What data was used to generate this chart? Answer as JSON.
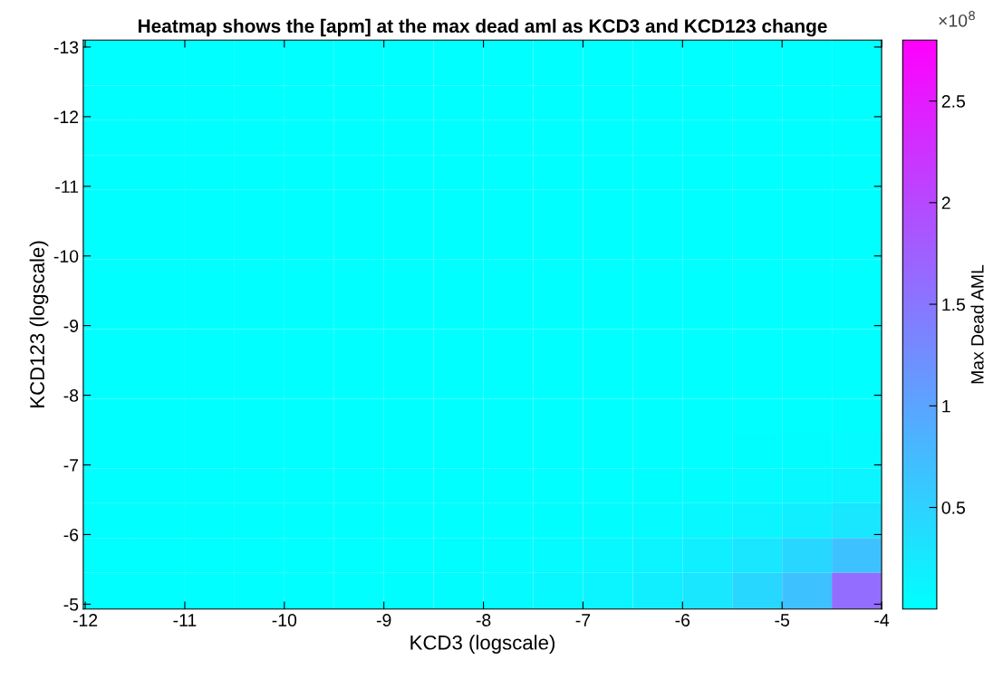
{
  "chart_data": {
    "type": "heatmap",
    "title": "Heatmap shows the [apm] at the max dead aml as KCD3 and KCD123 change",
    "xlabel": "KCD3 (logscale)",
    "ylabel": "KCD123 (logscale)",
    "clabel": "Max Dead AML",
    "annotations": [
      "×10$^{8}$"
    ],
    "x": [
      -11.75,
      -11.25,
      -10.75,
      -10.25,
      -9.75,
      -9.25,
      -8.75,
      -8.25,
      -7.75,
      -7.25,
      -6.75,
      -6.25,
      -5.75,
      -5.25,
      -4.75,
      -4.25
    ],
    "y": [
      -12.7,
      -12.2,
      -11.7,
      -11.2,
      -10.7,
      -10.2,
      -9.7,
      -9.2,
      -8.7,
      -8.2,
      -7.7,
      -7.2,
      -6.7,
      -6.2,
      -5.7,
      -5.2
    ],
    "cells": [
      [
        0,
        0,
        0,
        0,
        0,
        0,
        0,
        0,
        0,
        0,
        0,
        0,
        0,
        0,
        0,
        0
      ],
      [
        0,
        0,
        0,
        0,
        0,
        0,
        0,
        0,
        0,
        0,
        0,
        0,
        0,
        0,
        0,
        0
      ],
      [
        0,
        0,
        0,
        0,
        0,
        0,
        0,
        0,
        0,
        0,
        0,
        0,
        0,
        0,
        0,
        0
      ],
      [
        0,
        0,
        0,
        0,
        0,
        0,
        0,
        0,
        0,
        0,
        0,
        0,
        0,
        0,
        0,
        0
      ],
      [
        0,
        0,
        0,
        0,
        0,
        0,
        0,
        0,
        0,
        0,
        0,
        0,
        0,
        0,
        0,
        0
      ],
      [
        0,
        0,
        0,
        0,
        0,
        0,
        0,
        0,
        0,
        0,
        0,
        0,
        0,
        0,
        0,
        0
      ],
      [
        0,
        0,
        0,
        0,
        0,
        0,
        0,
        0,
        0,
        0,
        0,
        0,
        0,
        0,
        0,
        0
      ],
      [
        0,
        0,
        0,
        0,
        0,
        0,
        0,
        0,
        0,
        0,
        0,
        0,
        0,
        0,
        0,
        0
      ],
      [
        0,
        0,
        0,
        0,
        0,
        0,
        0,
        0,
        0,
        0,
        0,
        0,
        0,
        0,
        0,
        0
      ],
      [
        0,
        0,
        0,
        0,
        0,
        0,
        0,
        0,
        0,
        0,
        0,
        0,
        0,
        0,
        0,
        0
      ],
      [
        0,
        0,
        0,
        0,
        0,
        0,
        0,
        0,
        0,
        0,
        0,
        0,
        0,
        0,
        0.01,
        0.02
      ],
      [
        0,
        0,
        0,
        0,
        0,
        0,
        0,
        0,
        0,
        0,
        0,
        0,
        0.01,
        0.02,
        0.03,
        0.05
      ],
      [
        0,
        0,
        0,
        0,
        0,
        0,
        0,
        0,
        0,
        0,
        0.01,
        0.02,
        0.03,
        0.05,
        0.08,
        0.12
      ],
      [
        0,
        0,
        0,
        0,
        0,
        0,
        0,
        0,
        0.01,
        0.02,
        0.03,
        0.05,
        0.08,
        0.12,
        0.18,
        0.28
      ],
      [
        0,
        0,
        0,
        0,
        0,
        0,
        0.01,
        0.02,
        0.03,
        0.05,
        0.08,
        0.12,
        0.18,
        0.28,
        0.44,
        0.67
      ],
      [
        0,
        0,
        0,
        0,
        0.01,
        0.01,
        0.02,
        0.03,
        0.05,
        0.08,
        0.12,
        0.18,
        0.28,
        0.44,
        0.67,
        1.6
      ]
    ],
    "xlim": [
      -12.02,
      -4
    ],
    "ylim": [
      -4.93,
      -13.1
    ],
    "xticks": [
      -12,
      -11,
      -10,
      -9,
      -8,
      -7,
      -6,
      -5,
      -4
    ],
    "yticks": [
      -13,
      -12,
      -11,
      -10,
      -9,
      -8,
      -7,
      -6,
      -5
    ],
    "clim": [
      0,
      2.8
    ],
    "cticks": [
      0.5,
      1,
      1.5,
      2,
      2.5
    ]
  }
}
